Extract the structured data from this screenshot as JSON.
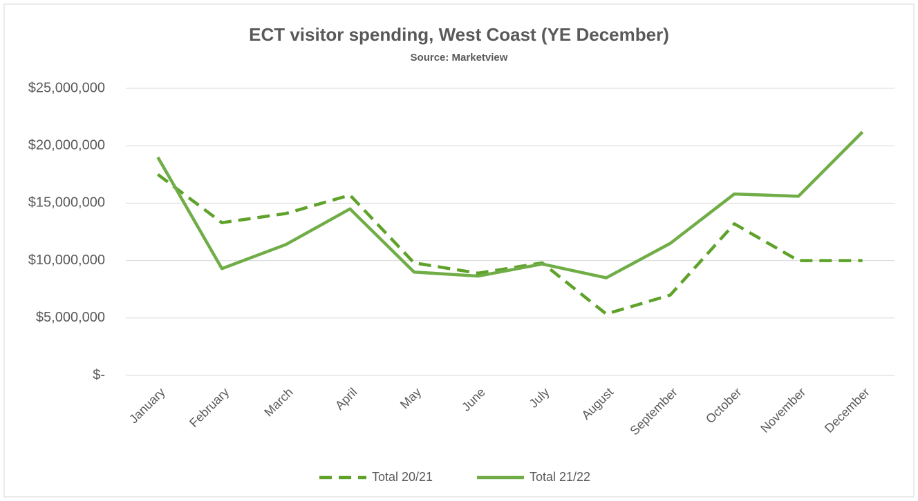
{
  "chart_data": {
    "type": "line",
    "title": "ECT visitor spending, West Coast (YE December)",
    "subtitle": "Source: Marketview",
    "categories": [
      "January",
      "February",
      "March",
      "April",
      "May",
      "June",
      "July",
      "August",
      "September",
      "October",
      "November",
      "December"
    ],
    "series": [
      {
        "name": "Total 20/21",
        "color": "#5ea22a",
        "dash": true,
        "values": [
          17500000,
          13300000,
          14100000,
          15700000,
          9800000,
          8900000,
          9800000,
          5350000,
          7000000,
          13200000,
          10000000,
          10000000
        ]
      },
      {
        "name": "Total 21/22",
        "color": "#70ad47",
        "dash": false,
        "values": [
          19000000,
          9300000,
          11400000,
          14500000,
          9000000,
          8650000,
          9700000,
          8500000,
          11500000,
          15800000,
          15600000,
          21200000
        ]
      }
    ],
    "ylim": [
      0,
      25000000
    ],
    "yticks": [
      {
        "value": 0,
        "label": "$-"
      },
      {
        "value": 5000000,
        "label": "$5,000,000"
      },
      {
        "value": 10000000,
        "label": "$10,000,000"
      },
      {
        "value": 15000000,
        "label": "$15,000,000"
      },
      {
        "value": 20000000,
        "label": "$20,000,000"
      },
      {
        "value": 25000000,
        "label": "$25,000,000"
      }
    ],
    "grid": true,
    "legend": "bottom"
  }
}
